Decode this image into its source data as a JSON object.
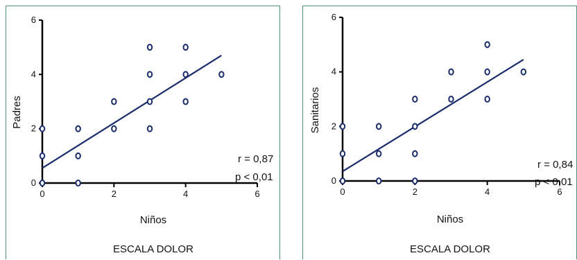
{
  "chart_data": [
    {
      "type": "scatter",
      "xlabel": "Niños",
      "ylabel": "Padres",
      "footer": "ESCALA DOLOR",
      "xlim": [
        0,
        6
      ],
      "ylim": [
        0,
        6
      ],
      "xticks": [
        "0",
        "2",
        "4",
        "6"
      ],
      "yticks": [
        "0",
        "2",
        "4",
        "6"
      ],
      "points": [
        [
          0,
          0
        ],
        [
          0,
          1
        ],
        [
          0,
          2
        ],
        [
          1,
          0
        ],
        [
          1,
          1
        ],
        [
          1,
          2
        ],
        [
          2,
          2
        ],
        [
          2,
          3
        ],
        [
          3,
          2
        ],
        [
          3,
          3
        ],
        [
          3,
          4
        ],
        [
          3,
          5
        ],
        [
          4,
          3
        ],
        [
          4,
          4
        ],
        [
          4,
          5
        ],
        [
          5,
          4
        ]
      ],
      "regression_line": {
        "x": [
          0,
          5
        ],
        "y": [
          0.55,
          4.7
        ]
      },
      "annotations": [
        "r = 0,87",
        "p < 0,01"
      ],
      "colors": {
        "point": "#1a2c6b",
        "line": "#1a2c6b",
        "axis": "#000000",
        "border": "#4d8a7f"
      }
    },
    {
      "type": "scatter",
      "xlabel": "Niños",
      "ylabel": "Sanitarios",
      "footer": "ESCALA DOLOR",
      "xlim": [
        0,
        6
      ],
      "ylim": [
        0,
        6
      ],
      "xticks": [
        "0",
        "2",
        "4",
        "6"
      ],
      "yticks": [
        "0",
        "2",
        "4",
        "6"
      ],
      "points": [
        [
          0,
          0
        ],
        [
          0,
          1
        ],
        [
          0,
          2
        ],
        [
          1,
          0
        ],
        [
          1,
          1
        ],
        [
          1,
          2
        ],
        [
          2,
          0
        ],
        [
          2,
          1
        ],
        [
          2,
          2
        ],
        [
          2,
          3
        ],
        [
          3,
          3
        ],
        [
          3,
          4
        ],
        [
          4,
          3
        ],
        [
          4,
          4
        ],
        [
          4,
          5
        ],
        [
          5,
          4
        ]
      ],
      "regression_line": {
        "x": [
          0,
          5
        ],
        "y": [
          0.35,
          4.45
        ]
      },
      "annotations": [
        "r = 0,84",
        "p < 0,01"
      ],
      "colors": {
        "point": "#1a2c6b",
        "line": "#1a2c6b",
        "axis": "#000000",
        "border": "#4d8a7f"
      }
    }
  ]
}
